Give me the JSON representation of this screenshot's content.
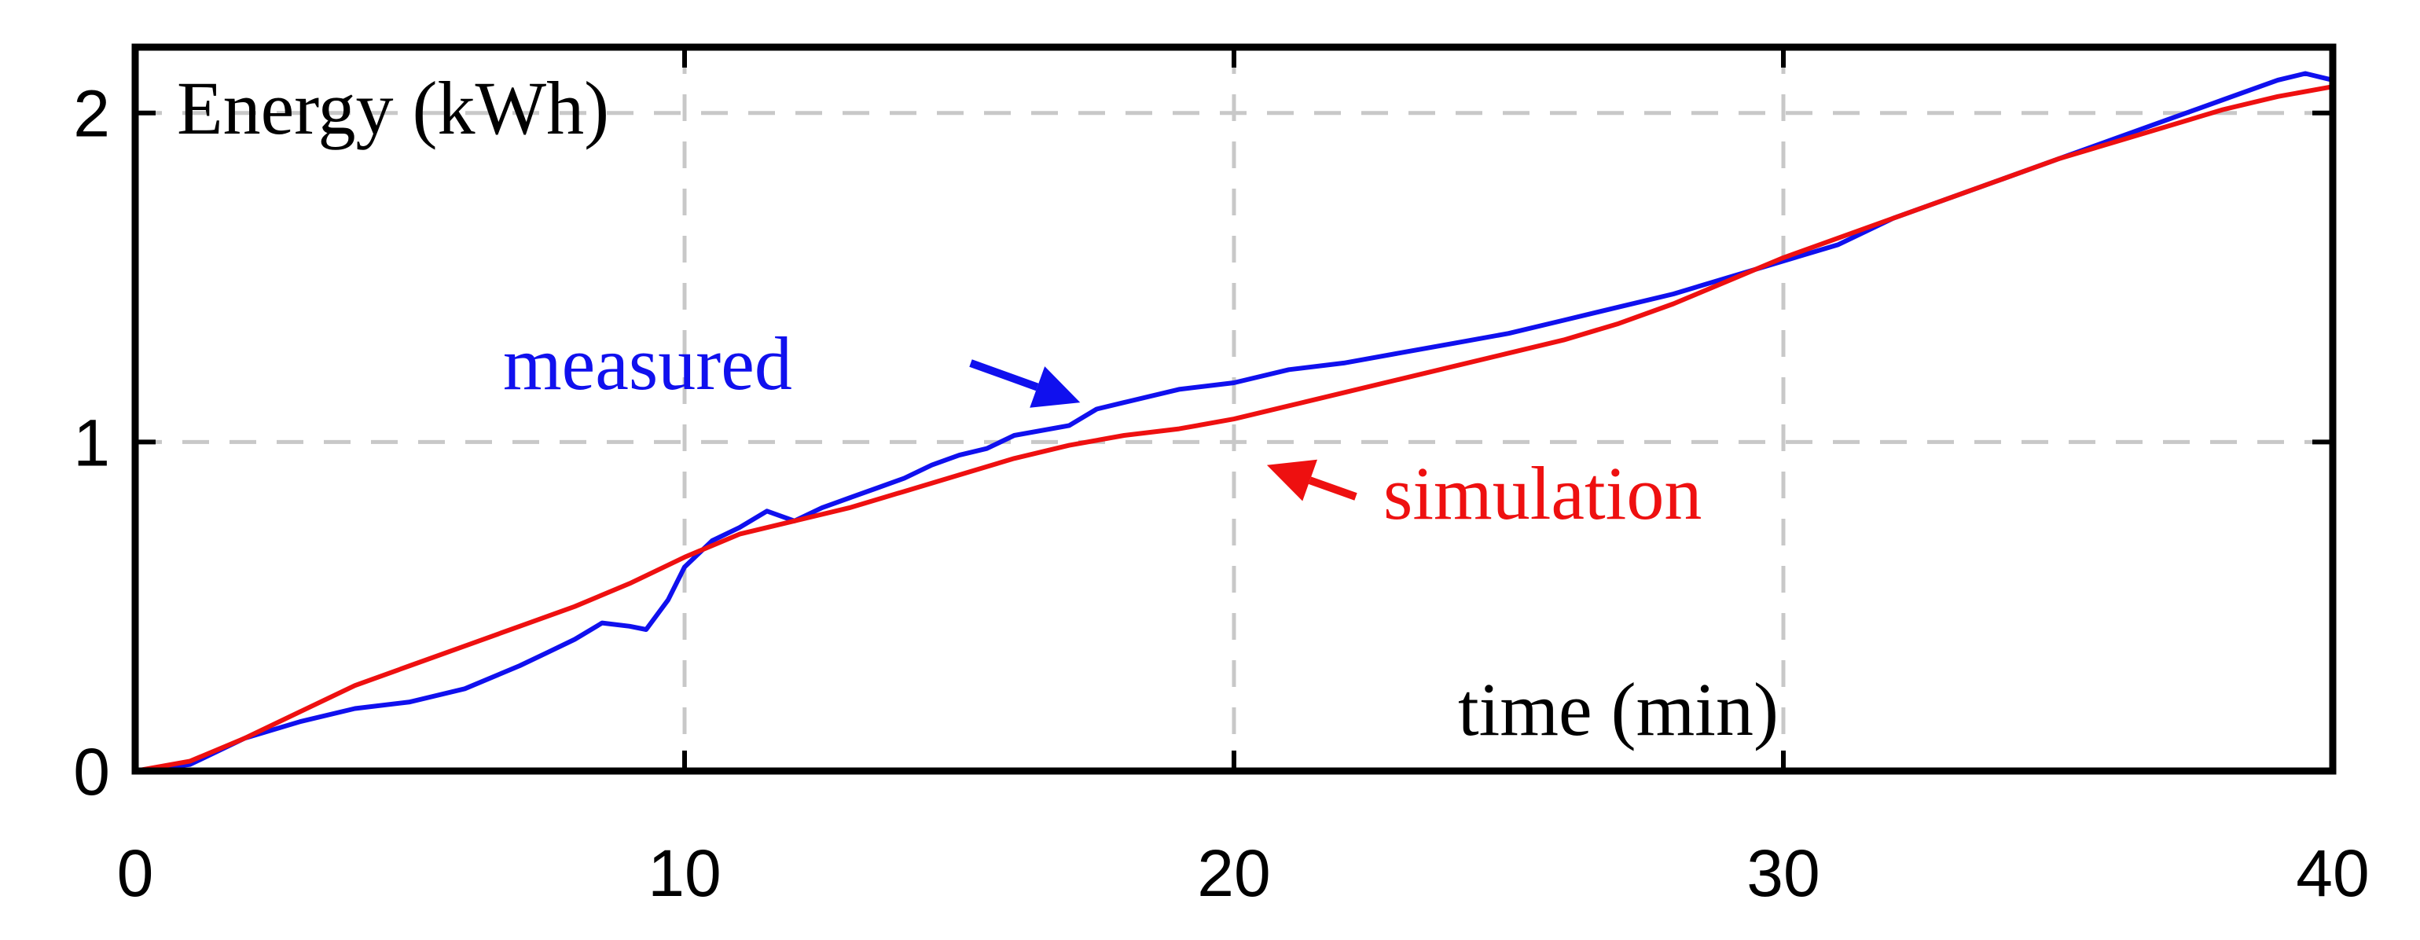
{
  "chart_data": {
    "type": "line",
    "ylabel": "Energy (kWh)",
    "xlabel": "time (min)",
    "xlim": [
      0,
      40
    ],
    "ylim": [
      0,
      2.2
    ],
    "x_ticks": [
      0,
      10,
      20,
      30,
      40
    ],
    "y_ticks": [
      0,
      1,
      2
    ],
    "x_tick_labels": [
      "0",
      "10",
      "20",
      "30",
      "40"
    ],
    "y_tick_labels": [
      "0",
      "1",
      "2"
    ],
    "grid": true,
    "series": [
      {
        "name": "measured",
        "color": "#1010ee",
        "x": [
          0,
          1,
          2,
          3,
          4,
          5,
          6,
          7,
          7.5,
          8,
          8.5,
          9,
          9.3,
          9.7,
          10,
          10.5,
          11,
          11.5,
          12,
          12.5,
          13,
          13.5,
          14,
          14.5,
          15,
          15.5,
          16,
          17,
          17.5,
          18,
          19,
          20,
          21,
          22,
          23,
          24,
          25,
          26,
          27,
          28,
          29,
          30,
          31,
          32,
          33,
          34,
          35,
          36,
          37,
          38,
          39,
          39.5,
          40
        ],
        "y": [
          0.0,
          0.02,
          0.1,
          0.15,
          0.19,
          0.21,
          0.25,
          0.32,
          0.36,
          0.4,
          0.45,
          0.44,
          0.43,
          0.52,
          0.62,
          0.7,
          0.74,
          0.79,
          0.76,
          0.8,
          0.83,
          0.86,
          0.89,
          0.93,
          0.96,
          0.98,
          1.02,
          1.05,
          1.1,
          1.12,
          1.16,
          1.18,
          1.22,
          1.24,
          1.27,
          1.3,
          1.33,
          1.37,
          1.41,
          1.45,
          1.5,
          1.55,
          1.6,
          1.68,
          1.74,
          1.8,
          1.86,
          1.92,
          1.98,
          2.04,
          2.1,
          2.12,
          2.1
        ]
      },
      {
        "name": "simulation",
        "color": "#ee1010",
        "x": [
          0,
          1,
          2,
          3,
          4,
          5,
          6,
          7,
          8,
          9,
          10,
          11,
          12,
          13,
          14,
          15,
          16,
          17,
          18,
          19,
          20,
          21,
          22,
          23,
          24,
          25,
          26,
          27,
          28,
          29,
          30,
          31,
          32,
          33,
          34,
          35,
          36,
          37,
          38,
          39,
          40
        ],
        "y": [
          0.0,
          0.03,
          0.1,
          0.18,
          0.26,
          0.32,
          0.38,
          0.44,
          0.5,
          0.57,
          0.65,
          0.72,
          0.76,
          0.8,
          0.85,
          0.9,
          0.95,
          0.99,
          1.02,
          1.04,
          1.07,
          1.11,
          1.15,
          1.19,
          1.23,
          1.27,
          1.31,
          1.36,
          1.42,
          1.49,
          1.56,
          1.62,
          1.68,
          1.74,
          1.8,
          1.86,
          1.91,
          1.96,
          2.01,
          2.05,
          2.08
        ]
      }
    ],
    "annotations": [
      {
        "text": "measured",
        "color": "#1010ee",
        "arrow_to": [
          17.2,
          1.12
        ]
      },
      {
        "text": "simulation",
        "color": "#ee1010",
        "arrow_to": [
          20.6,
          0.93
        ]
      }
    ],
    "frame_color": "#000000",
    "grid_color": "#c8c8c8"
  }
}
